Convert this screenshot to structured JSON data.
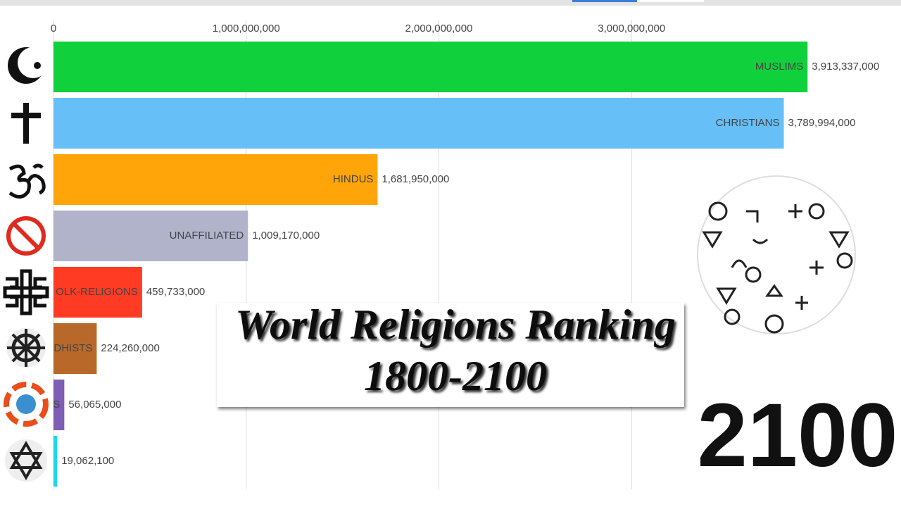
{
  "chart_data": {
    "type": "bar",
    "orientation": "horizontal",
    "title": [
      "World Religions Ranking",
      "1800-2100"
    ],
    "year": "2100",
    "categories": [
      "MUSLIMS",
      "CHRISTIANS",
      "HINDUS",
      "UNAFFILIATED",
      "OLK-RELIGIONS",
      "DHISTS",
      "S",
      null
    ],
    "values": [
      3913337000,
      3789994000,
      1681950000,
      1009170000,
      459733000,
      224260000,
      56065000,
      19062100
    ],
    "value_labels": [
      "3,913,337,000",
      "3,789,994,000",
      "1,681,950,000",
      "1,009,170,000",
      "459,733,000",
      "224,260,000",
      "56,065,000",
      "19,062,100"
    ],
    "colors": [
      "#10d13c",
      "#66bff7",
      "#ffa409",
      "#b1b3cb",
      "#ff3b24",
      "#b8692a",
      "#7e5db5",
      "#1bd6ef"
    ],
    "xlim": [
      0,
      4000000000
    ],
    "xticks": [
      0,
      {
        "value": 1000000000,
        "label": "1,000,000,000"
      },
      {
        "value": 2000000000,
        "label": "2,000,000,000"
      },
      {
        "value": 3000000000,
        "label": "3,000,000,000"
      }
    ],
    "grid": true
  }
}
